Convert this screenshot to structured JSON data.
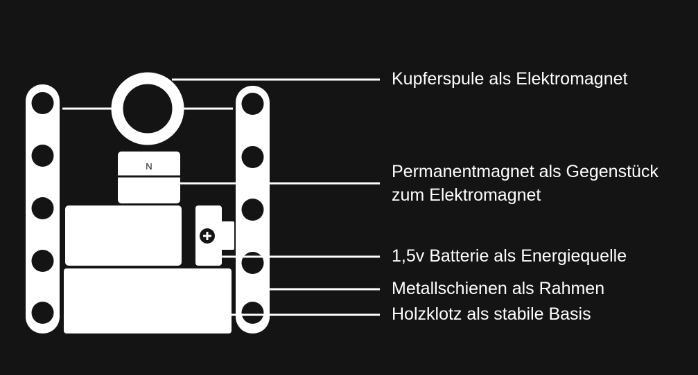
{
  "colors": {
    "background": "#141414",
    "foreground": "#ffffff"
  },
  "magnet": {
    "pole": "N"
  },
  "battery": {
    "terminal_icon": "plus-icon"
  },
  "labels": {
    "coil": "Kupferspule als Elektromagnet",
    "magnet_line1": "Permanentmagnet als Gegenstück",
    "magnet_line2": "zum Elektromagnet",
    "battery": "1,5v Batterie als Energiequelle",
    "rails": "Metallschienen als Rahmen",
    "base": "Holzklotz als stabile Basis"
  }
}
